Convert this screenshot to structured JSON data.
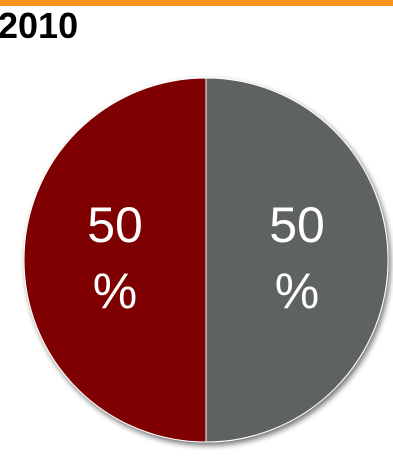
{
  "page": {
    "accent_color": "#F7941D"
  },
  "chart_data": {
    "type": "pie",
    "title": "2010",
    "slices": [
      {
        "label_value": "50",
        "label_unit": "%",
        "value": 50,
        "color": "#7F0000"
      },
      {
        "label_value": "50",
        "label_unit": "%",
        "value": 50,
        "color": "#5E6361"
      }
    ],
    "legend": "none"
  }
}
